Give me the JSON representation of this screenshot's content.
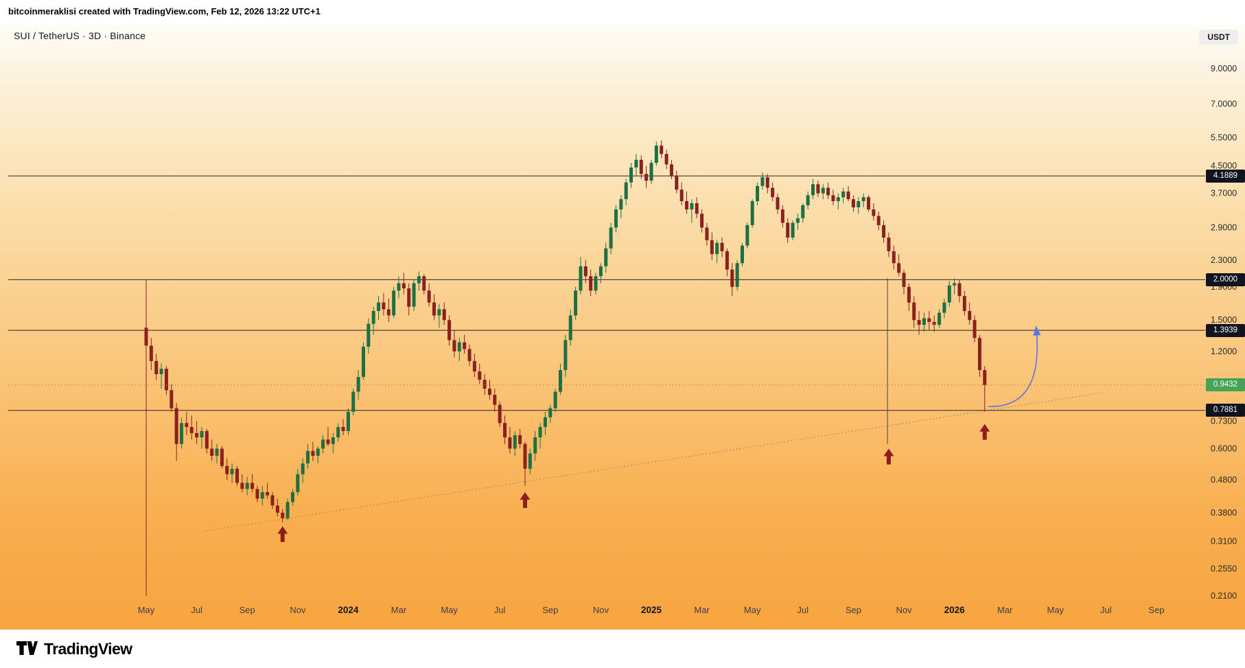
{
  "header": {
    "attribution": "bitcoinmeraklisi created with TradingView.com, Feb 12, 2026 13:22 UTC+1"
  },
  "toolbar": {
    "symbol_title": "SUI / TetherUS · 3D · Binance",
    "currency_badge": "USDT"
  },
  "footer": {
    "brand": "TradingView"
  },
  "chart_data": {
    "type": "candlestick",
    "title": "SUI / TetherUS · 3D · Binance",
    "symbol": "SUI / TetherUS",
    "interval": "3D",
    "exchange": "Binance",
    "colors": {
      "up": "#1d6f44",
      "down": "#8a2020",
      "level_line": "#26262e",
      "level_badge": "#11131f",
      "last_badge": "#45a355"
    },
    "levels": [
      {
        "price": 4.1889,
        "label": "4.1889"
      },
      {
        "price": 2.0,
        "label": "2.0000"
      },
      {
        "price": 1.3939,
        "label": "1.3939"
      },
      {
        "price": 0.7881,
        "label": "0.7881"
      }
    ],
    "last_price": {
      "value": 0.9432,
      "label": "0.9432",
      "line_color": "#b07a30"
    },
    "y_axis": {
      "scale": "log",
      "range": [
        0.19,
        10.5
      ],
      "ticks": [
        {
          "label": "9.0000",
          "value": 9
        },
        {
          "label": "7.0000",
          "value": 7
        },
        {
          "label": "5.5000",
          "value": 5.5
        },
        {
          "label": "4.5000",
          "value": 4.5
        },
        {
          "label": "3.7000",
          "value": 3.7
        },
        {
          "label": "2.9000",
          "value": 2.9
        },
        {
          "label": "2.3000",
          "value": 2.3
        },
        {
          "label": "1.9000",
          "value": 1.9
        },
        {
          "label": "1.5000",
          "value": 1.5
        },
        {
          "label": "1.2000",
          "value": 1.2
        },
        {
          "label": "0.7300",
          "value": 0.73
        },
        {
          "label": "0.6000",
          "value": 0.6
        },
        {
          "label": "0.4800",
          "value": 0.48
        },
        {
          "label": "0.3800",
          "value": 0.38
        },
        {
          "label": "0.3100",
          "value": 0.31
        },
        {
          "label": "0.2550",
          "value": 0.255
        },
        {
          "label": "0.2100",
          "value": 0.21
        }
      ]
    },
    "x_axis": {
      "labels": [
        {
          "text": "May",
          "month": 0
        },
        {
          "text": "Jul",
          "month": 2
        },
        {
          "text": "Sep",
          "month": 4
        },
        {
          "text": "Nov",
          "month": 6
        },
        {
          "text": "2024",
          "month": 8,
          "bold": true
        },
        {
          "text": "Mar",
          "month": 10
        },
        {
          "text": "May",
          "month": 12
        },
        {
          "text": "Jul",
          "month": 14
        },
        {
          "text": "Sep",
          "month": 16
        },
        {
          "text": "Nov",
          "month": 18
        },
        {
          "text": "2025",
          "month": 20,
          "bold": true
        },
        {
          "text": "Mar",
          "month": 22
        },
        {
          "text": "May",
          "month": 24
        },
        {
          "text": "Jul",
          "month": 26
        },
        {
          "text": "Sep",
          "month": 28
        },
        {
          "text": "Nov",
          "month": 30
        },
        {
          "text": "2026",
          "month": 32,
          "bold": true
        },
        {
          "text": "Mar",
          "month": 34
        },
        {
          "text": "May",
          "month": 36
        },
        {
          "text": "Jul",
          "month": 38
        },
        {
          "text": "Sep",
          "month": 40
        }
      ]
    },
    "series": {
      "start_date": "2023-05-03",
      "interval_days": 6,
      "candles_per_month": 5,
      "ohlc": [
        [
          1.42,
          2.0,
          0.21,
          1.25
        ],
        [
          1.25,
          1.32,
          1.05,
          1.12
        ],
        [
          1.12,
          1.18,
          0.98,
          1.02
        ],
        [
          1.02,
          1.1,
          0.92,
          1.06
        ],
        [
          1.06,
          1.08,
          0.88,
          0.91
        ],
        [
          0.91,
          0.95,
          0.78,
          0.8
        ],
        [
          0.8,
          0.83,
          0.55,
          0.62
        ],
        [
          0.62,
          0.75,
          0.6,
          0.72
        ],
        [
          0.72,
          0.78,
          0.66,
          0.7
        ],
        [
          0.7,
          0.76,
          0.64,
          0.67
        ],
        [
          0.67,
          0.73,
          0.62,
          0.65
        ],
        [
          0.65,
          0.7,
          0.6,
          0.68
        ],
        [
          0.68,
          0.69,
          0.58,
          0.6
        ],
        [
          0.6,
          0.64,
          0.55,
          0.57
        ],
        [
          0.57,
          0.62,
          0.54,
          0.6
        ],
        [
          0.6,
          0.61,
          0.52,
          0.53
        ],
        [
          0.53,
          0.56,
          0.48,
          0.5
        ],
        [
          0.5,
          0.54,
          0.47,
          0.52
        ],
        [
          0.52,
          0.53,
          0.46,
          0.47
        ],
        [
          0.47,
          0.5,
          0.44,
          0.45
        ],
        [
          0.45,
          0.49,
          0.43,
          0.47
        ],
        [
          0.47,
          0.5,
          0.44,
          0.45
        ],
        [
          0.45,
          0.46,
          0.41,
          0.42
        ],
        [
          0.42,
          0.46,
          0.4,
          0.44
        ],
        [
          0.44,
          0.47,
          0.42,
          0.43
        ],
        [
          0.43,
          0.44,
          0.39,
          0.4
        ],
        [
          0.4,
          0.42,
          0.37,
          0.38
        ],
        [
          0.38,
          0.39,
          0.355,
          0.365
        ],
        [
          0.365,
          0.42,
          0.36,
          0.41
        ],
        [
          0.41,
          0.45,
          0.4,
          0.44
        ],
        [
          0.44,
          0.52,
          0.43,
          0.5
        ],
        [
          0.5,
          0.56,
          0.47,
          0.54
        ],
        [
          0.54,
          0.62,
          0.52,
          0.59
        ],
        [
          0.59,
          0.63,
          0.55,
          0.57
        ],
        [
          0.57,
          0.61,
          0.54,
          0.6
        ],
        [
          0.6,
          0.66,
          0.58,
          0.64
        ],
        [
          0.64,
          0.7,
          0.61,
          0.62
        ],
        [
          0.62,
          0.67,
          0.58,
          0.65
        ],
        [
          0.65,
          0.72,
          0.63,
          0.7
        ],
        [
          0.7,
          0.74,
          0.66,
          0.68
        ],
        [
          0.68,
          0.8,
          0.66,
          0.78
        ],
        [
          0.78,
          0.92,
          0.76,
          0.9
        ],
        [
          0.9,
          1.05,
          0.85,
          1.0
        ],
        [
          1.0,
          1.28,
          0.98,
          1.24
        ],
        [
          1.24,
          1.52,
          1.18,
          1.46
        ],
        [
          1.46,
          1.65,
          1.35,
          1.6
        ],
        [
          1.6,
          1.78,
          1.5,
          1.7
        ],
        [
          1.7,
          1.82,
          1.55,
          1.62
        ],
        [
          1.62,
          1.75,
          1.48,
          1.55
        ],
        [
          1.55,
          1.9,
          1.52,
          1.85
        ],
        [
          1.85,
          2.05,
          1.75,
          1.95
        ],
        [
          1.95,
          2.1,
          1.8,
          1.88
        ],
        [
          1.88,
          1.95,
          1.55,
          1.65
        ],
        [
          1.65,
          2.0,
          1.6,
          1.95
        ],
        [
          1.95,
          2.12,
          1.85,
          2.05
        ],
        [
          2.05,
          2.08,
          1.8,
          1.85
        ],
        [
          1.85,
          1.95,
          1.65,
          1.7
        ],
        [
          1.7,
          1.8,
          1.5,
          1.55
        ],
        [
          1.55,
          1.68,
          1.42,
          1.62
        ],
        [
          1.62,
          1.7,
          1.45,
          1.5
        ],
        [
          1.5,
          1.55,
          1.25,
          1.3
        ],
        [
          1.3,
          1.4,
          1.15,
          1.2
        ],
        [
          1.2,
          1.32,
          1.12,
          1.28
        ],
        [
          1.28,
          1.35,
          1.18,
          1.22
        ],
        [
          1.22,
          1.26,
          1.08,
          1.12
        ],
        [
          1.12,
          1.18,
          1.0,
          1.04
        ],
        [
          1.04,
          1.1,
          0.95,
          0.98
        ],
        [
          0.98,
          1.02,
          0.88,
          0.92
        ],
        [
          0.92,
          0.98,
          0.85,
          0.88
        ],
        [
          0.88,
          0.92,
          0.78,
          0.82
        ],
        [
          0.82,
          0.84,
          0.7,
          0.72
        ],
        [
          0.72,
          0.76,
          0.62,
          0.65
        ],
        [
          0.65,
          0.7,
          0.58,
          0.6
        ],
        [
          0.6,
          0.68,
          0.57,
          0.66
        ],
        [
          0.66,
          0.69,
          0.6,
          0.62
        ],
        [
          0.62,
          0.63,
          0.46,
          0.52
        ],
        [
          0.52,
          0.6,
          0.5,
          0.58
        ],
        [
          0.58,
          0.68,
          0.55,
          0.65
        ],
        [
          0.65,
          0.72,
          0.6,
          0.7
        ],
        [
          0.7,
          0.78,
          0.66,
          0.75
        ],
        [
          0.75,
          0.82,
          0.72,
          0.8
        ],
        [
          0.8,
          0.92,
          0.78,
          0.9
        ],
        [
          0.9,
          1.1,
          0.88,
          1.05
        ],
        [
          1.05,
          1.35,
          1.0,
          1.3
        ],
        [
          1.3,
          1.62,
          1.25,
          1.55
        ],
        [
          1.55,
          1.9,
          1.5,
          1.85
        ],
        [
          1.85,
          2.35,
          1.8,
          2.2
        ],
        [
          2.2,
          2.3,
          1.95,
          2.05
        ],
        [
          2.05,
          2.15,
          1.78,
          1.85
        ],
        [
          1.85,
          2.1,
          1.8,
          2.05
        ],
        [
          2.05,
          2.25,
          1.95,
          2.2
        ],
        [
          2.2,
          2.6,
          2.1,
          2.5
        ],
        [
          2.5,
          3.0,
          2.4,
          2.9
        ],
        [
          2.9,
          3.4,
          2.8,
          3.3
        ],
        [
          3.3,
          3.65,
          3.1,
          3.55
        ],
        [
          3.55,
          4.1,
          3.4,
          4.0
        ],
        [
          4.0,
          4.6,
          3.85,
          4.45
        ],
        [
          4.45,
          4.9,
          4.2,
          4.7
        ],
        [
          4.7,
          4.85,
          4.1,
          4.25
        ],
        [
          4.25,
          4.5,
          3.85,
          4.05
        ],
        [
          4.05,
          4.7,
          3.95,
          4.6
        ],
        [
          4.6,
          5.35,
          4.5,
          5.2
        ],
        [
          5.2,
          5.4,
          4.75,
          4.9
        ],
        [
          4.9,
          5.05,
          4.4,
          4.55
        ],
        [
          4.55,
          4.7,
          4.1,
          4.2
        ],
        [
          4.2,
          4.35,
          3.7,
          3.8
        ],
        [
          3.8,
          4.0,
          3.4,
          3.5
        ],
        [
          3.5,
          3.75,
          3.2,
          3.3
        ],
        [
          3.3,
          3.55,
          3.0,
          3.45
        ],
        [
          3.45,
          3.6,
          3.1,
          3.2
        ],
        [
          3.2,
          3.3,
          2.8,
          2.9
        ],
        [
          2.9,
          3.0,
          2.55,
          2.65
        ],
        [
          2.65,
          2.8,
          2.3,
          2.4
        ],
        [
          2.4,
          2.65,
          2.25,
          2.6
        ],
        [
          2.6,
          2.7,
          2.35,
          2.45
        ],
        [
          2.45,
          2.5,
          2.05,
          2.15
        ],
        [
          2.15,
          2.25,
          1.78,
          1.9
        ],
        [
          1.9,
          2.3,
          1.85,
          2.25
        ],
        [
          2.25,
          2.6,
          2.2,
          2.55
        ],
        [
          2.55,
          3.0,
          2.5,
          2.95
        ],
        [
          2.95,
          3.55,
          2.9,
          3.5
        ],
        [
          3.5,
          4.0,
          3.4,
          3.9
        ],
        [
          3.9,
          4.3,
          3.8,
          4.15
        ],
        [
          4.15,
          4.25,
          3.7,
          3.85
        ],
        [
          3.85,
          4.0,
          3.5,
          3.6
        ],
        [
          3.6,
          3.7,
          3.2,
          3.3
        ],
        [
          3.3,
          3.4,
          2.9,
          3.0
        ],
        [
          3.0,
          3.1,
          2.6,
          2.7
        ],
        [
          2.7,
          3.05,
          2.65,
          3.0
        ],
        [
          3.0,
          3.2,
          2.85,
          3.1
        ],
        [
          3.1,
          3.45,
          3.0,
          3.4
        ],
        [
          3.4,
          3.75,
          3.3,
          3.65
        ],
        [
          3.65,
          4.1,
          3.55,
          3.95
        ],
        [
          3.95,
          4.05,
          3.6,
          3.7
        ],
        [
          3.7,
          3.95,
          3.55,
          3.85
        ],
        [
          3.85,
          4.0,
          3.55,
          3.65
        ],
        [
          3.65,
          3.8,
          3.4,
          3.5
        ],
        [
          3.5,
          3.7,
          3.3,
          3.6
        ],
        [
          3.6,
          3.85,
          3.45,
          3.75
        ],
        [
          3.75,
          3.9,
          3.5,
          3.55
        ],
        [
          3.55,
          3.65,
          3.25,
          3.35
        ],
        [
          3.35,
          3.6,
          3.2,
          3.5
        ],
        [
          3.5,
          3.7,
          3.35,
          3.6
        ],
        [
          3.6,
          3.65,
          3.25,
          3.3
        ],
        [
          3.3,
          3.45,
          3.05,
          3.15
        ],
        [
          3.15,
          3.25,
          2.85,
          2.95
        ],
        [
          2.95,
          3.05,
          2.6,
          2.7
        ],
        [
          2.7,
          2.8,
          2.35,
          2.45
        ],
        [
          2.45,
          2.55,
          2.15,
          2.25
        ],
        [
          2.25,
          2.4,
          2.05,
          2.1
        ],
        [
          2.1,
          2.15,
          1.8,
          1.9
        ],
        [
          1.9,
          1.95,
          1.6,
          1.7
        ],
        [
          1.7,
          1.78,
          1.42,
          1.5
        ],
        [
          1.5,
          1.6,
          1.35,
          1.45
        ],
        [
          1.45,
          1.58,
          1.38,
          1.52
        ],
        [
          1.52,
          1.6,
          1.4,
          1.48
        ],
        [
          1.48,
          1.55,
          1.38,
          1.45
        ],
        [
          1.45,
          1.62,
          1.42,
          1.58
        ],
        [
          1.58,
          1.75,
          1.52,
          1.7
        ],
        [
          1.7,
          1.98,
          1.65,
          1.92
        ],
        [
          1.92,
          2.02,
          1.8,
          1.95
        ],
        [
          1.95,
          2.0,
          1.7,
          1.78
        ],
        [
          1.78,
          1.85,
          1.55,
          1.6
        ],
        [
          1.6,
          1.7,
          1.45,
          1.5
        ],
        [
          1.5,
          1.55,
          1.28,
          1.32
        ],
        [
          1.32,
          1.35,
          1.0,
          1.05
        ],
        [
          1.05,
          1.08,
          0.78,
          0.9432
        ]
      ]
    },
    "annotations": {
      "support_trendline": {
        "style": "dotted",
        "color": "#a08457",
        "from": {
          "month": 2.28,
          "price": 0.333
        },
        "to": {
          "month": 37.88,
          "price": 0.894
        }
      },
      "buy_arrows": {
        "color": "#8e1d1d",
        "points": [
          {
            "month": 5.4,
            "price": 0.345
          },
          {
            "month": 15.0,
            "price": 0.44
          },
          {
            "month": 29.4,
            "price": 0.6
          },
          {
            "month": 33.2,
            "price": 0.715
          }
        ]
      },
      "vertical_line": {
        "month": 29.35,
        "from_price": 2.02,
        "to_price": 0.62,
        "color": "#4a443c"
      },
      "projection_arrow": {
        "color": "#5b78e0",
        "from": {
          "month": 33.34,
          "price": 0.81
        },
        "control": {
          "month": 35.55,
          "price": 0.8
        },
        "to": {
          "month": 35.24,
          "price": 1.42
        }
      }
    }
  }
}
